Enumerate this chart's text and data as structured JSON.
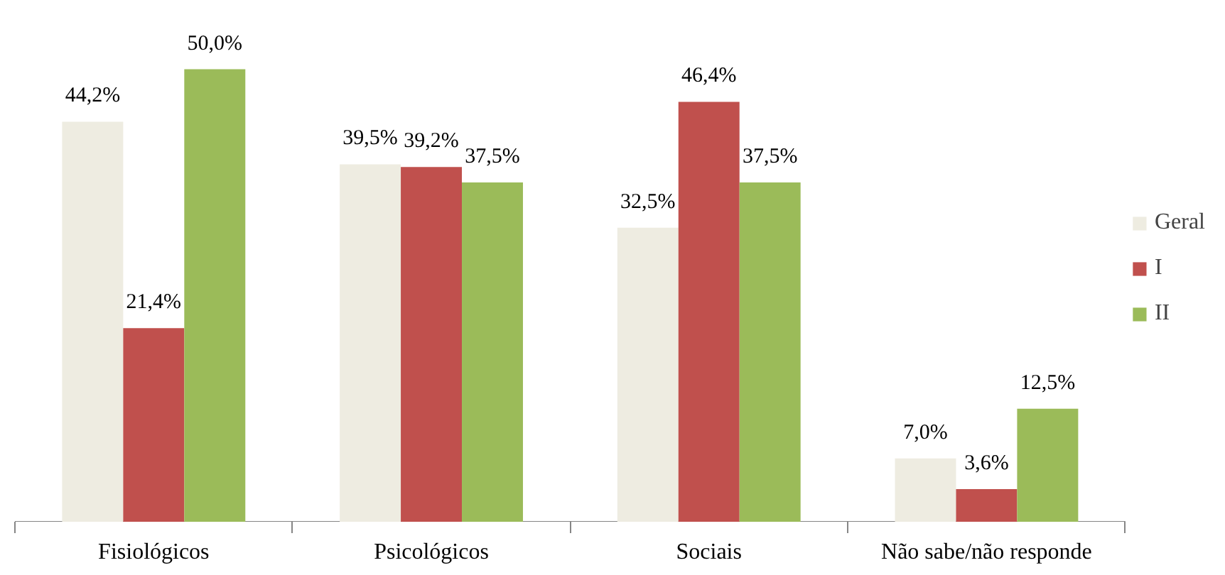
{
  "chart_data": {
    "type": "bar",
    "categories": [
      "Fisiológicos",
      "Psicológicos",
      "Sociais",
      "Não sabe/não responde"
    ],
    "series": [
      {
        "name": "Geral",
        "color": "#eeece1",
        "values": [
          44.2,
          39.5,
          32.5,
          7.0
        ],
        "value_labels": [
          "44,2%",
          "39,5%",
          "32,5%",
          "7,0%"
        ]
      },
      {
        "name": "I",
        "color": "#c0504d",
        "values": [
          21.4,
          39.2,
          46.4,
          3.6
        ],
        "value_labels": [
          "21,4%",
          "39,2%",
          "46,4%",
          "3,6%"
        ]
      },
      {
        "name": "II",
        "color": "#9bbb59",
        "values": [
          50.0,
          37.5,
          37.5,
          12.5
        ],
        "value_labels": [
          "50,0%",
          "37,5%",
          "37,5%",
          "12,5%"
        ]
      }
    ],
    "legend": "right",
    "grid": false
  }
}
